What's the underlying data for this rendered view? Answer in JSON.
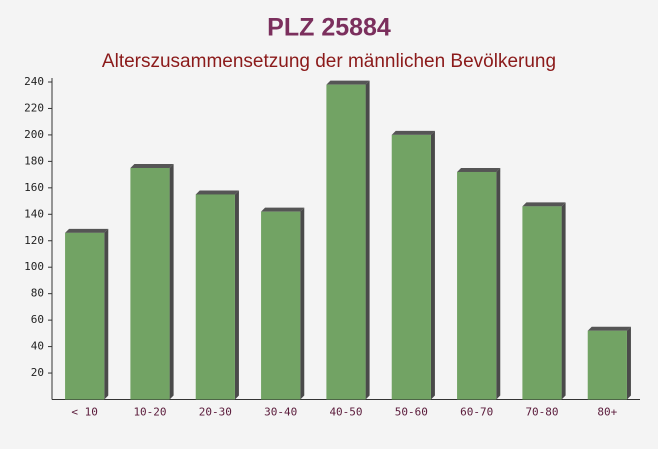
{
  "chart_data": {
    "type": "bar",
    "title": "PLZ 25884",
    "subtitle": "Alterszusammensetzung der männlichen Bevölkerung",
    "categories": [
      "< 10",
      "10-20",
      "20-30",
      "30-40",
      "40-50",
      "50-60",
      "60-70",
      "70-80",
      "80+"
    ],
    "values": [
      126,
      175,
      155,
      142,
      238,
      200,
      172,
      146,
      52
    ],
    "color": "#6a9e5c",
    "ylim": [
      0,
      240
    ],
    "yticks": [
      20,
      40,
      60,
      80,
      100,
      120,
      140,
      160,
      180,
      200,
      220,
      240
    ],
    "grid": false
  }
}
